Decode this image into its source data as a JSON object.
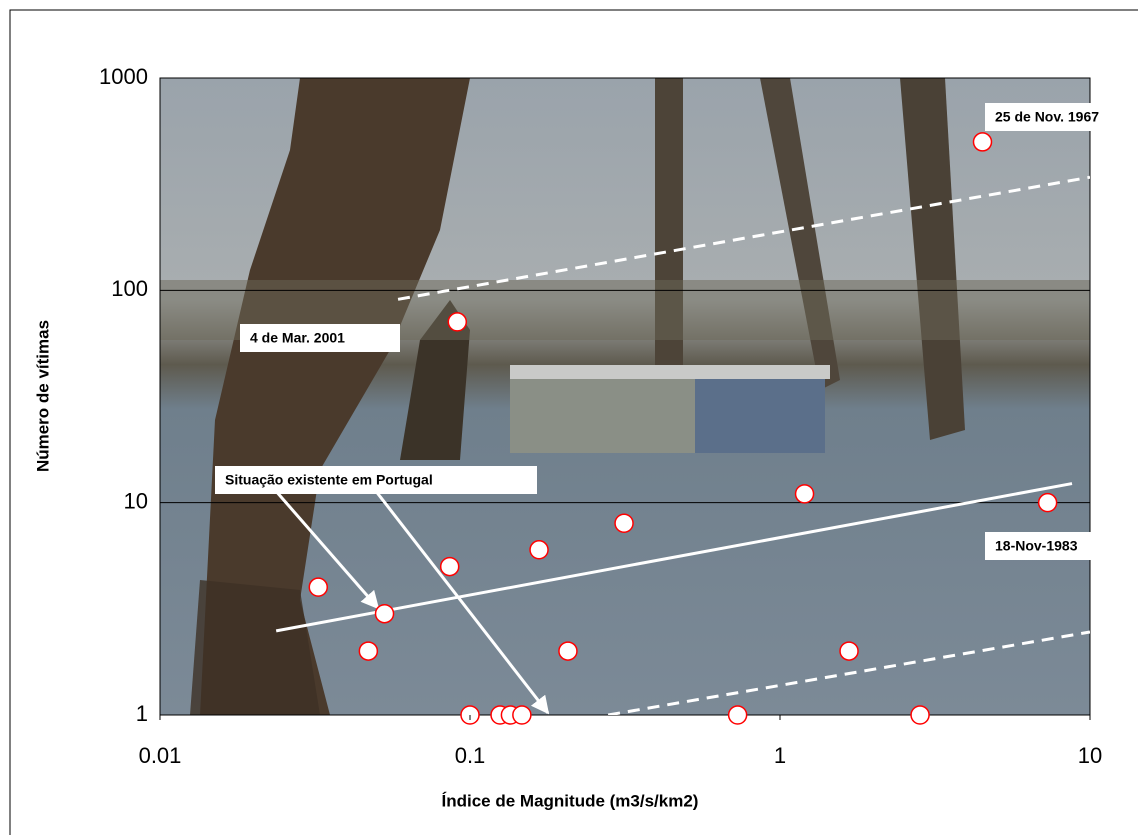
{
  "chart_data": {
    "type": "scatter",
    "xlabel": "Índice de Magnitude (m3/s/km2)",
    "ylabel": "Número de vítimas",
    "xscale": "log",
    "yscale": "log",
    "xlim": [
      0.01,
      10
    ],
    "ylim": [
      1,
      1000
    ],
    "xticks": [
      0.01,
      0.1,
      1,
      10
    ],
    "yticks": [
      1,
      10,
      100,
      1000
    ],
    "grid": true,
    "series": [
      {
        "color": "#ff0000",
        "x": [
          0.0324,
          0.047,
          0.053,
          0.086,
          0.091,
          0.1,
          0.125,
          0.135,
          0.147,
          0.167,
          0.207,
          0.314,
          0.73,
          1.2,
          1.67,
          2.83,
          4.5,
          7.3
        ],
        "y": [
          4,
          2,
          3,
          5,
          71,
          1,
          1,
          1,
          1,
          6,
          2,
          8,
          1,
          11,
          2,
          1,
          500,
          10
        ]
      }
    ],
    "trend_lines": [
      {
        "style": "solid",
        "x": [
          0.0237,
          8.75
        ],
        "y": [
          2.49,
          12.3
        ]
      },
      {
        "style": "dashed",
        "x": [
          0.0586,
          10
        ],
        "y": [
          90.7,
          341
        ]
      },
      {
        "style": "dashed",
        "x": [
          0.279,
          10
        ],
        "y": [
          1,
          2.46
        ]
      }
    ],
    "annotations": [
      "25 de Nov. 1967",
      "4 de Mar. 2001",
      "18-Nov-1983",
      "Situação existente em Portugal"
    ]
  }
}
